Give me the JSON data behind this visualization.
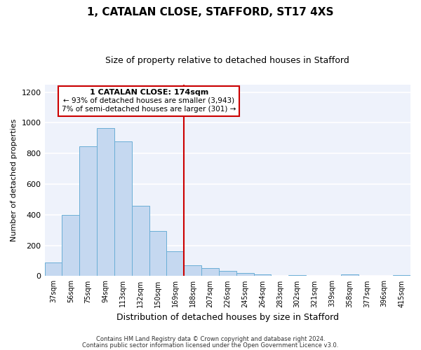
{
  "title": "1, CATALAN CLOSE, STAFFORD, ST17 4XS",
  "subtitle": "Size of property relative to detached houses in Stafford",
  "xlabel": "Distribution of detached houses by size in Stafford",
  "ylabel": "Number of detached properties",
  "bar_labels": [
    "37sqm",
    "56sqm",
    "75sqm",
    "94sqm",
    "113sqm",
    "132sqm",
    "150sqm",
    "169sqm",
    "188sqm",
    "207sqm",
    "226sqm",
    "245sqm",
    "264sqm",
    "283sqm",
    "302sqm",
    "321sqm",
    "339sqm",
    "358sqm",
    "377sqm",
    "396sqm",
    "415sqm"
  ],
  "bar_values": [
    90,
    400,
    848,
    965,
    880,
    460,
    295,
    160,
    72,
    50,
    32,
    18,
    10,
    0,
    8,
    0,
    0,
    10,
    0,
    0,
    8
  ],
  "bar_color": "#c5d8f0",
  "bar_edge_color": "#6aaed6",
  "bg_color": "#eef2fb",
  "vline_x": 7.5,
  "vline_color": "#cc0000",
  "annotation_title": "1 CATALAN CLOSE: 174sqm",
  "annotation_line1": "← 93% of detached houses are smaller (3,943)",
  "annotation_line2": "7% of semi-detached houses are larger (301) →",
  "annotation_box_color": "#cc0000",
  "ylim": [
    0,
    1250
  ],
  "yticks": [
    0,
    200,
    400,
    600,
    800,
    1000,
    1200
  ],
  "footer1": "Contains HM Land Registry data © Crown copyright and database right 2024.",
  "footer2": "Contains public sector information licensed under the Open Government Licence v3.0."
}
